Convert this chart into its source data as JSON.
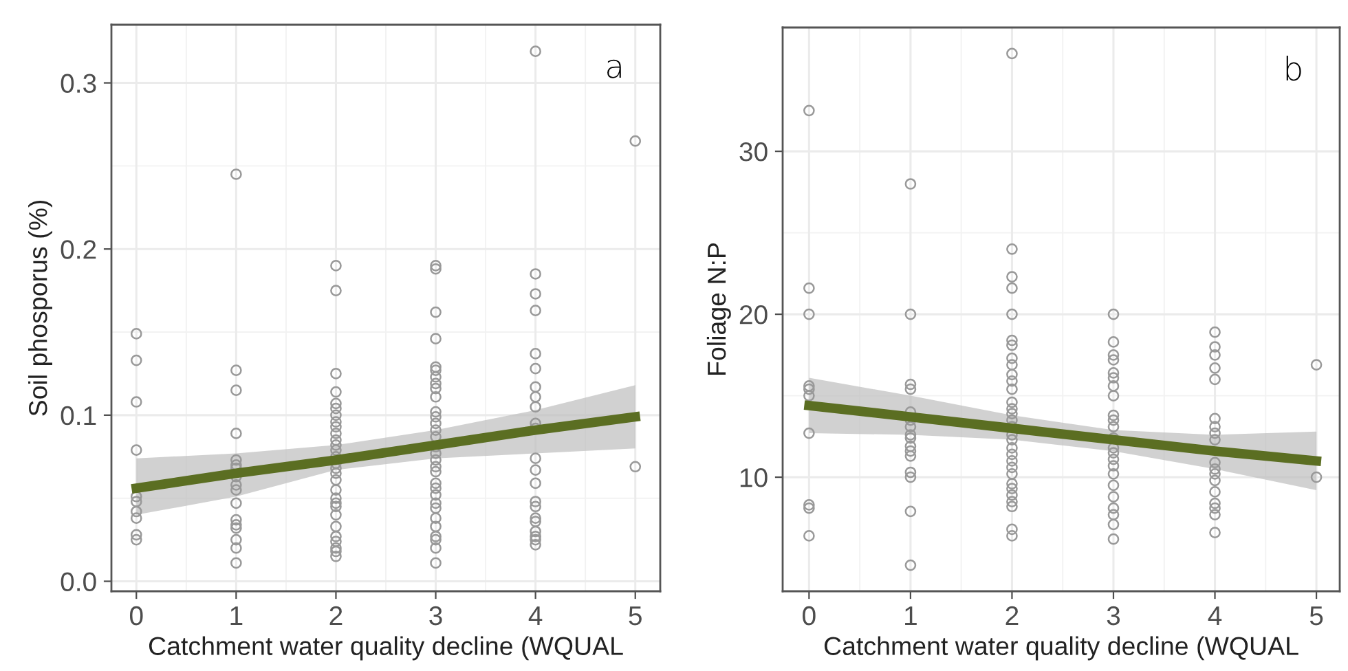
{
  "chart_data": [
    {
      "type": "scatter",
      "xlabel": "Catchment water quality decline (WQUAL",
      "ylabel": "Soil phosporus (%)",
      "annotations": [
        "a"
      ],
      "xlim": [
        -0.25,
        5.25
      ],
      "ylim": [
        -0.006,
        0.335
      ],
      "xticks": [
        0,
        1,
        2,
        3,
        4,
        5
      ],
      "yticks": [
        {
          "value": 0,
          "label": "0.0"
        },
        0.1,
        0.2,
        0.3
      ],
      "grid": true,
      "series": [
        {
          "color": "#999999",
          "marker": "circle",
          "x": [
            0,
            0,
            0,
            0,
            0,
            0,
            0,
            0,
            0,
            0,
            1,
            1,
            1,
            1,
            1,
            1,
            1,
            1,
            1,
            1,
            1,
            1,
            1,
            1,
            1,
            1,
            1,
            2,
            2,
            2,
            2,
            2,
            2,
            2,
            2,
            2,
            2,
            2,
            2,
            2,
            2,
            2,
            2,
            2,
            2,
            2,
            2,
            2,
            2,
            2,
            2,
            2,
            2,
            2,
            2,
            2,
            3,
            3,
            3,
            3,
            3,
            3,
            3,
            3,
            3,
            3,
            3,
            3,
            3,
            3,
            3,
            3,
            3,
            3,
            3,
            3,
            3,
            3,
            3,
            3,
            3,
            3,
            3,
            3,
            3,
            3,
            3,
            4,
            4,
            4,
            4,
            4,
            4,
            4,
            4,
            4,
            4,
            4,
            4,
            4,
            4,
            4,
            4,
            4,
            4,
            4,
            4,
            4,
            4,
            5,
            5
          ],
          "values": [
            0.149,
            0.133,
            0.108,
            0.079,
            0.051,
            0.048,
            0.042,
            0.038,
            0.028,
            0.025,
            0.245,
            0.127,
            0.115,
            0.089,
            0.073,
            0.07,
            0.068,
            0.063,
            0.058,
            0.055,
            0.047,
            0.037,
            0.034,
            0.032,
            0.025,
            0.02,
            0.011,
            0.19,
            0.175,
            0.125,
            0.114,
            0.107,
            0.104,
            0.1,
            0.096,
            0.093,
            0.089,
            0.085,
            0.082,
            0.079,
            0.075,
            0.071,
            0.068,
            0.065,
            0.061,
            0.055,
            0.05,
            0.047,
            0.045,
            0.04,
            0.033,
            0.027,
            0.024,
            0.02,
            0.018,
            0.015,
            0.19,
            0.188,
            0.162,
            0.146,
            0.129,
            0.127,
            0.123,
            0.119,
            0.116,
            0.111,
            0.102,
            0.099,
            0.095,
            0.091,
            0.087,
            0.081,
            0.077,
            0.073,
            0.069,
            0.066,
            0.059,
            0.056,
            0.052,
            0.047,
            0.044,
            0.038,
            0.033,
            0.027,
            0.025,
            0.02,
            0.011,
            0.319,
            0.185,
            0.173,
            0.163,
            0.137,
            0.128,
            0.117,
            0.111,
            0.105,
            0.095,
            0.092,
            0.074,
            0.067,
            0.059,
            0.048,
            0.045,
            0.038,
            0.036,
            0.03,
            0.027,
            0.025,
            0.022,
            0.265,
            0.069
          ]
        },
        {
          "type": "line",
          "color": "#5b6e22",
          "x": [
            0,
            1,
            2,
            3,
            4,
            5
          ],
          "values": [
            0.056,
            0.065,
            0.073,
            0.082,
            0.091,
            0.099
          ],
          "lower": [
            0.04,
            0.051,
            0.067,
            0.074,
            0.077,
            0.08
          ],
          "upper": [
            0.074,
            0.077,
            0.082,
            0.091,
            0.103,
            0.118
          ]
        }
      ]
    },
    {
      "type": "scatter",
      "xlabel": "Catchment water quality decline (WQUAL",
      "ylabel": "Foliage N:P",
      "annotations": [
        "b"
      ],
      "xlim": [
        -0.26,
        5.23
      ],
      "ylim": [
        3.0,
        37.6
      ],
      "xticks": [
        0,
        1,
        2,
        3,
        4,
        5
      ],
      "yticks": [
        10,
        20,
        30
      ],
      "grid": true,
      "series": [
        {
          "color": "#999999",
          "marker": "circle",
          "x": [
            0,
            0,
            0,
            0,
            0,
            0,
            0,
            0,
            0,
            0,
            1,
            1,
            1,
            1,
            1,
            1,
            1,
            1,
            1,
            1,
            1,
            1,
            1,
            1,
            1,
            1,
            2,
            2,
            2,
            2,
            2,
            2,
            2,
            2,
            2,
            2,
            2,
            2,
            2,
            2,
            2,
            2,
            2,
            2,
            2,
            2,
            2,
            2,
            2,
            2,
            2,
            2,
            2,
            2,
            2,
            2,
            2,
            3,
            3,
            3,
            3,
            3,
            3,
            3,
            3,
            3,
            3,
            3,
            3,
            3,
            3,
            3,
            3,
            3,
            3,
            3,
            3,
            3,
            3,
            3,
            4,
            4,
            4,
            4,
            4,
            4,
            4,
            4,
            4,
            4,
            4,
            4,
            4,
            4,
            4,
            4,
            4,
            4,
            5,
            5
          ],
          "values": [
            32.5,
            21.6,
            20.0,
            15.6,
            15.4,
            15.0,
            12.7,
            8.3,
            8.1,
            6.4,
            28.0,
            20.0,
            15.7,
            15.4,
            14.0,
            13.5,
            13.1,
            12.6,
            12.4,
            11.9,
            11.6,
            11.3,
            10.3,
            10.0,
            7.9,
            4.6,
            36.0,
            24.0,
            22.3,
            21.6,
            20.0,
            18.4,
            18.1,
            17.3,
            16.9,
            16.3,
            15.9,
            15.4,
            14.6,
            14.2,
            13.9,
            13.5,
            13.1,
            12.6,
            12.3,
            11.8,
            11.4,
            11.0,
            10.6,
            10.2,
            9.6,
            9.3,
            8.9,
            8.5,
            8.2,
            6.8,
            6.4,
            20.0,
            18.3,
            17.5,
            17.2,
            16.4,
            16.1,
            15.6,
            15.0,
            13.8,
            13.5,
            13.1,
            12.4,
            11.8,
            11.5,
            11.1,
            10.7,
            10.2,
            9.5,
            8.8,
            8.1,
            7.7,
            7.1,
            6.2,
            18.9,
            18.0,
            17.5,
            16.7,
            16.0,
            13.6,
            13.1,
            12.7,
            12.3,
            10.9,
            10.5,
            10.2,
            9.8,
            9.1,
            8.4,
            8.1,
            7.7,
            6.6,
            16.9,
            10.0
          ]
        },
        {
          "type": "line",
          "color": "#5b6e22",
          "x": [
            0,
            1,
            2,
            3,
            4,
            5
          ],
          "values": [
            14.4,
            13.7,
            13.0,
            12.3,
            11.6,
            11.0
          ],
          "lower": [
            12.7,
            12.6,
            12.3,
            11.6,
            10.5,
            9.2
          ],
          "upper": [
            16.1,
            15.0,
            13.8,
            12.9,
            12.6,
            12.8
          ]
        }
      ]
    }
  ]
}
